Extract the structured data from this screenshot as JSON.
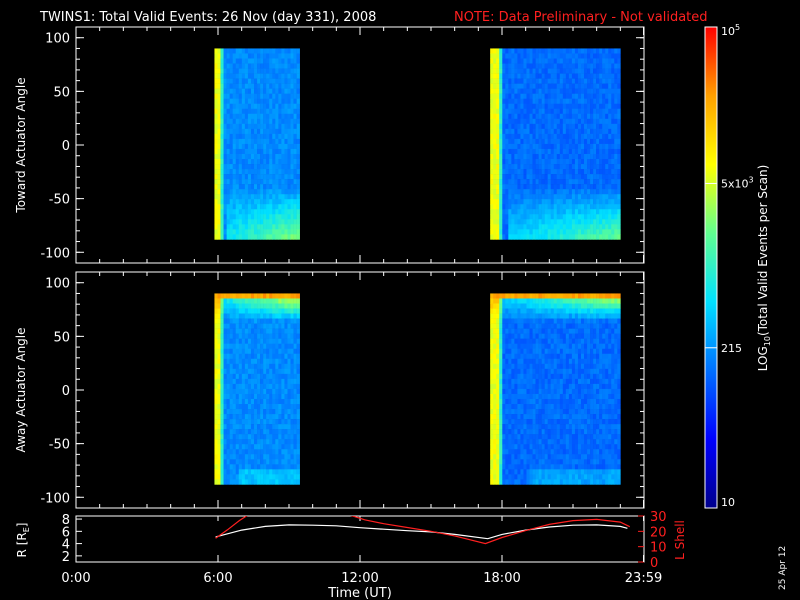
{
  "title": {
    "main": "TWINS1: Total Valid Events: 26 Nov (day 331), 2008",
    "note": "NOTE: Data Preliminary - Not validated",
    "note_color": "#ff2020"
  },
  "stamp": "25 Apr 12",
  "colors": {
    "orbit_r": "#ffffff",
    "orbit_lshell": "#ff2020",
    "axis": "#ffffff"
  },
  "colorbar": {
    "label": "LOG10(Total Valid Events per Scan)",
    "label_main": "LOG",
    "label_sub": "10",
    "label_rest": "(Total Valid Events per Scan)",
    "range": [
      10,
      100000
    ],
    "scale": "log",
    "stops": [
      "#00008c",
      "#0000ff",
      "#0070ff",
      "#00e0ff",
      "#60ff90",
      "#ffff00",
      "#ffa000",
      "#ff0000"
    ],
    "ticks": [
      {
        "value": 10,
        "label": "10"
      },
      {
        "value": 215,
        "label": "215"
      },
      {
        "value": 5000,
        "label_base": "5x10",
        "label_exp": "3"
      },
      {
        "value": 100000,
        "label_base": "10",
        "label_exp": "5"
      }
    ]
  },
  "chart_data": [
    {
      "type": "heatmap",
      "ylabel": "Toward Actuator Angle",
      "xlim": [
        0,
        24
      ],
      "ylim": [
        -110,
        110
      ],
      "yticks": [
        "100",
        "50",
        "0",
        "-50",
        "-100"
      ],
      "ytick_values": [
        100,
        50,
        0,
        -50,
        -100
      ],
      "data_blocks": [
        {
          "t_start": 5.85,
          "t_end": 9.45,
          "angle_range": [
            -88,
            90
          ]
        },
        {
          "t_start": 17.5,
          "t_end": 23.0,
          "angle_range": [
            -88,
            90
          ]
        }
      ],
      "pattern": "toward"
    },
    {
      "type": "heatmap",
      "ylabel": "Away Actuator Angle",
      "xlim": [
        0,
        24
      ],
      "ylim": [
        -110,
        110
      ],
      "yticks": [
        "100",
        "50",
        "0",
        "-50",
        "-100"
      ],
      "ytick_values": [
        100,
        50,
        0,
        -50,
        -100
      ],
      "data_blocks": [
        {
          "t_start": 5.85,
          "t_end": 9.45,
          "angle_range": [
            -88,
            90
          ]
        },
        {
          "t_start": 17.5,
          "t_end": 23.0,
          "angle_range": [
            -88,
            90
          ]
        }
      ],
      "pattern": "away"
    },
    {
      "type": "line",
      "ylabel_left": "R [R",
      "ylabel_left_sub": "E",
      "ylabel_left_end": "]",
      "ylabel_right": "L Shell",
      "xlabel": "Time (UT)",
      "xticks": [
        "0:00",
        "6:00",
        "12:00",
        "18:00",
        "23:59"
      ],
      "xtick_values": [
        0,
        6,
        12,
        18,
        23.98
      ],
      "xlim": [
        0,
        24
      ],
      "ylim_left": [
        1,
        8.5
      ],
      "yticks_left": [
        "8",
        "6",
        "4",
        "2"
      ],
      "ytick_values_left": [
        8,
        6,
        4,
        2
      ],
      "ylim_right": [
        0,
        30
      ],
      "yticks_right": [
        "30",
        "20",
        "10",
        "0"
      ],
      "ytick_values_right": [
        30,
        20,
        10,
        0
      ],
      "series": [
        {
          "name": "R",
          "axis": "left",
          "x": [
            5.9,
            7.0,
            8.0,
            9.0,
            10.0,
            11.0,
            12.0,
            13.0,
            14.0,
            15.0,
            16.0,
            17.4,
            18.0,
            19.0,
            20.0,
            21.0,
            22.0,
            23.0,
            23.3
          ],
          "y": [
            5.1,
            6.2,
            6.8,
            7.05,
            7.0,
            6.9,
            6.6,
            6.35,
            6.1,
            5.9,
            5.5,
            4.8,
            5.5,
            6.2,
            6.7,
            7.0,
            7.05,
            6.8,
            6.5
          ]
        },
        {
          "name": "L Shell",
          "axis": "right",
          "x": [
            5.9,
            6.4,
            6.9,
            7.3,
            11.4,
            11.7,
            12.2,
            13.0,
            14.0,
            15.0,
            16.0,
            17.3,
            18.0,
            19.0,
            20.0,
            21.0,
            22.0,
            23.0,
            23.4
          ],
          "y": [
            15.5,
            21.0,
            27.0,
            31.0,
            31.0,
            30.0,
            27.5,
            25.0,
            22.5,
            20.0,
            17.0,
            12.0,
            16.0,
            20.5,
            24.5,
            27.0,
            27.8,
            26.0,
            23.0
          ]
        }
      ]
    }
  ]
}
